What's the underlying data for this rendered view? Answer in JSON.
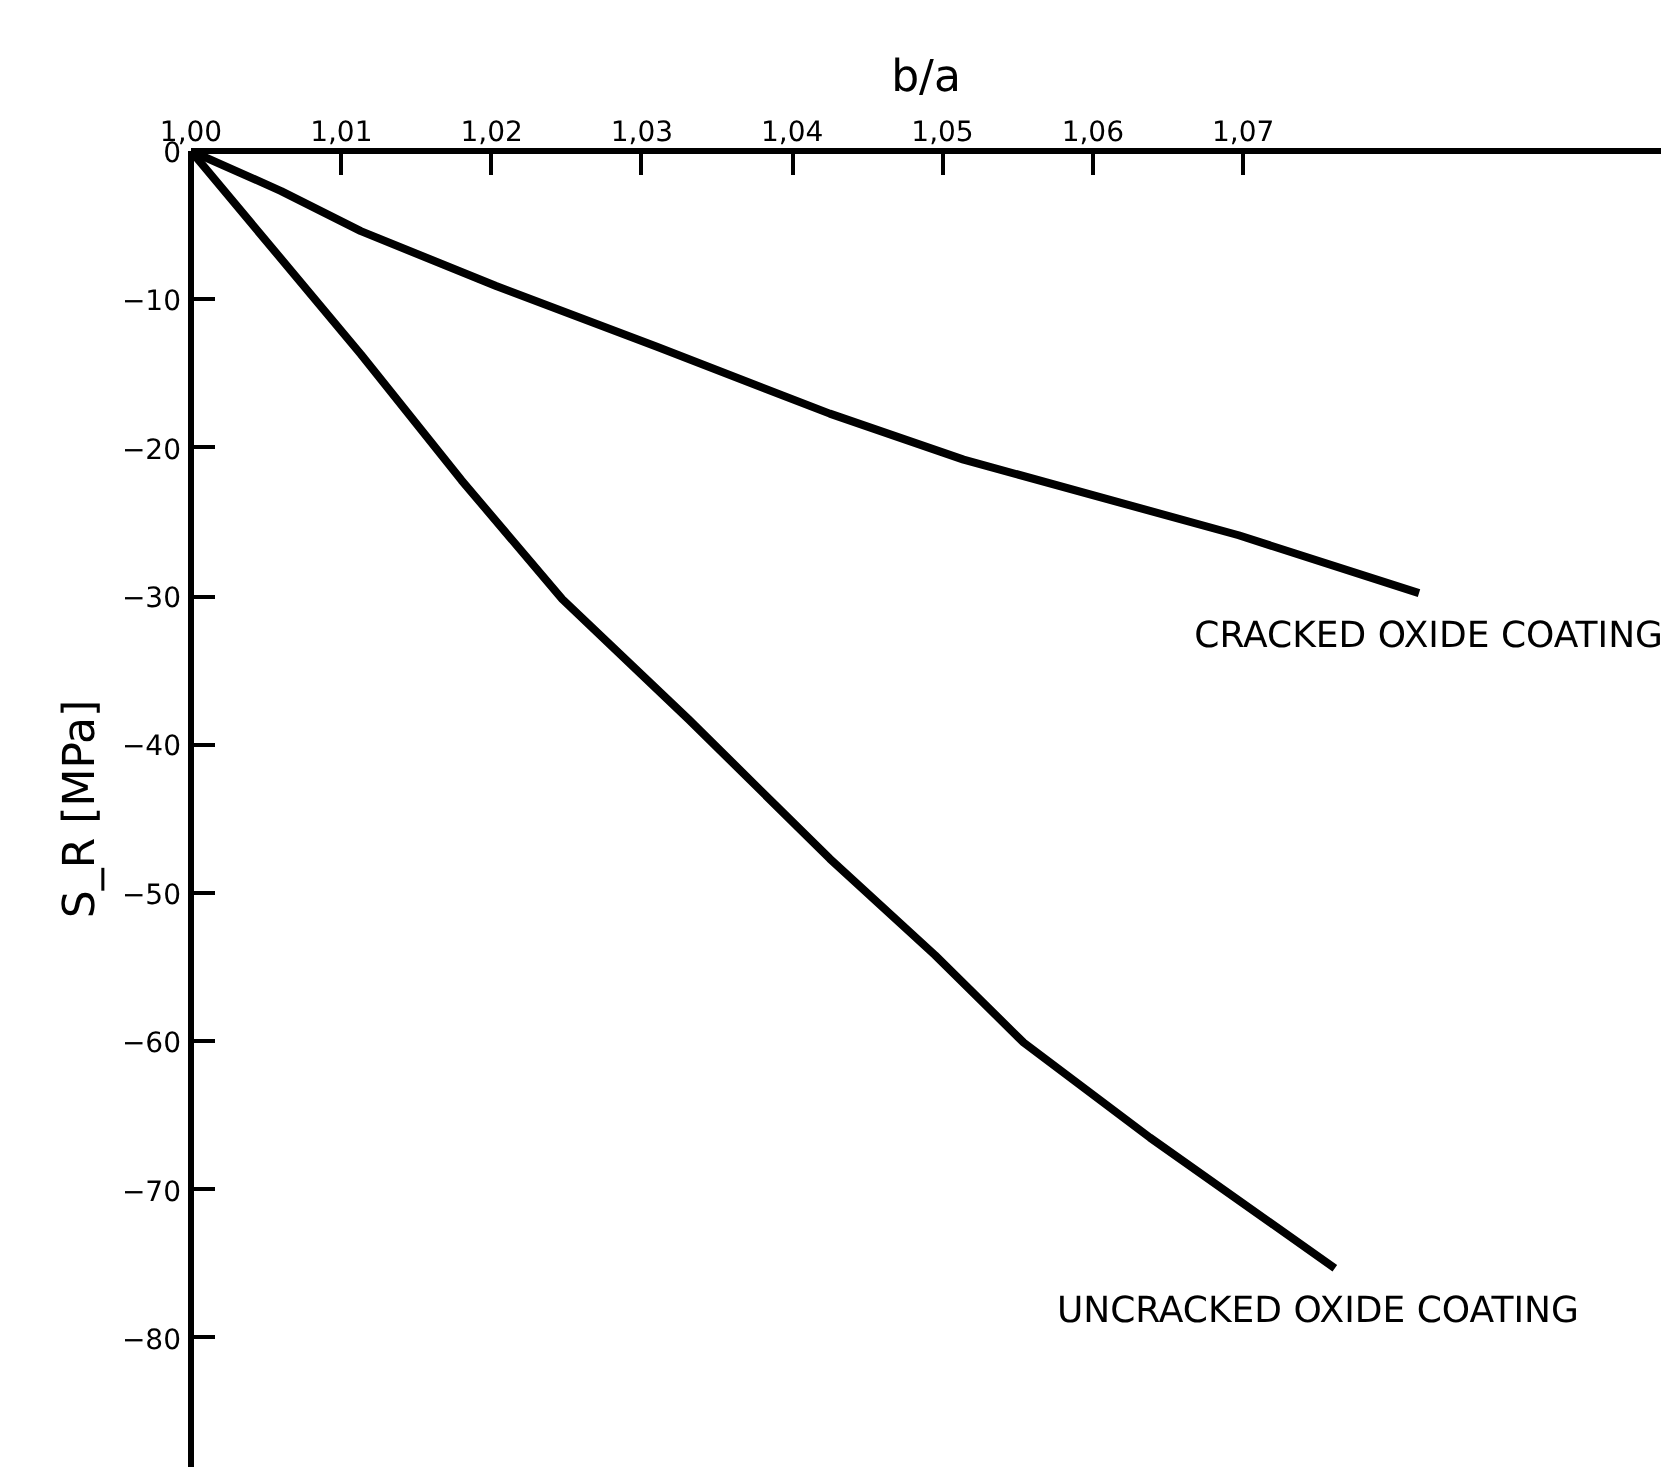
{
  "chart_data": {
    "type": "line",
    "xlabel": "b/a",
    "ylabel": "S_R [MPa]",
    "xlim": [
      1.0,
      1.0978
    ],
    "ylim": [
      -88.7,
      0
    ],
    "xticks": [
      {
        "value": 1.0,
        "label": "1,00"
      },
      {
        "value": 1.01,
        "label": "1,01"
      },
      {
        "value": 1.02,
        "label": "1,02"
      },
      {
        "value": 1.03,
        "label": "1,03"
      },
      {
        "value": 1.04,
        "label": "1,04"
      },
      {
        "value": 1.05,
        "label": "1,05"
      },
      {
        "value": 1.06,
        "label": "1,06"
      },
      {
        "value": 1.07,
        "label": "1,07"
      }
    ],
    "yticks": [
      0,
      -10,
      -20,
      -30,
      -40,
      -50,
      -60,
      -70,
      -80
    ],
    "grid": false,
    "marker": "none",
    "line_style": "solid",
    "series": [
      {
        "name": "CRACKED OXIDE COATING",
        "color": "#000000",
        "x": [
          1.0,
          1.006,
          1.0113,
          1.0203,
          1.031,
          1.0425,
          1.0514,
          1.0697,
          1.0817
        ],
        "values": [
          0,
          -2.7,
          -5.4,
          -9.1,
          -13.2,
          -17.7,
          -20.8,
          -25.9,
          -29.8
        ]
      },
      {
        "name": "UNCRACKED OXIDE COATING",
        "color": "#000000",
        "x": [
          1.0,
          1.0113,
          1.018,
          1.0247,
          1.0331,
          1.0425,
          1.0495,
          1.0554,
          1.0638,
          1.0761
        ],
        "values": [
          0,
          -13.7,
          -22.2,
          -30.2,
          -38.3,
          -47.7,
          -54.2,
          -60.1,
          -66.5,
          -75.3
        ]
      }
    ]
  }
}
